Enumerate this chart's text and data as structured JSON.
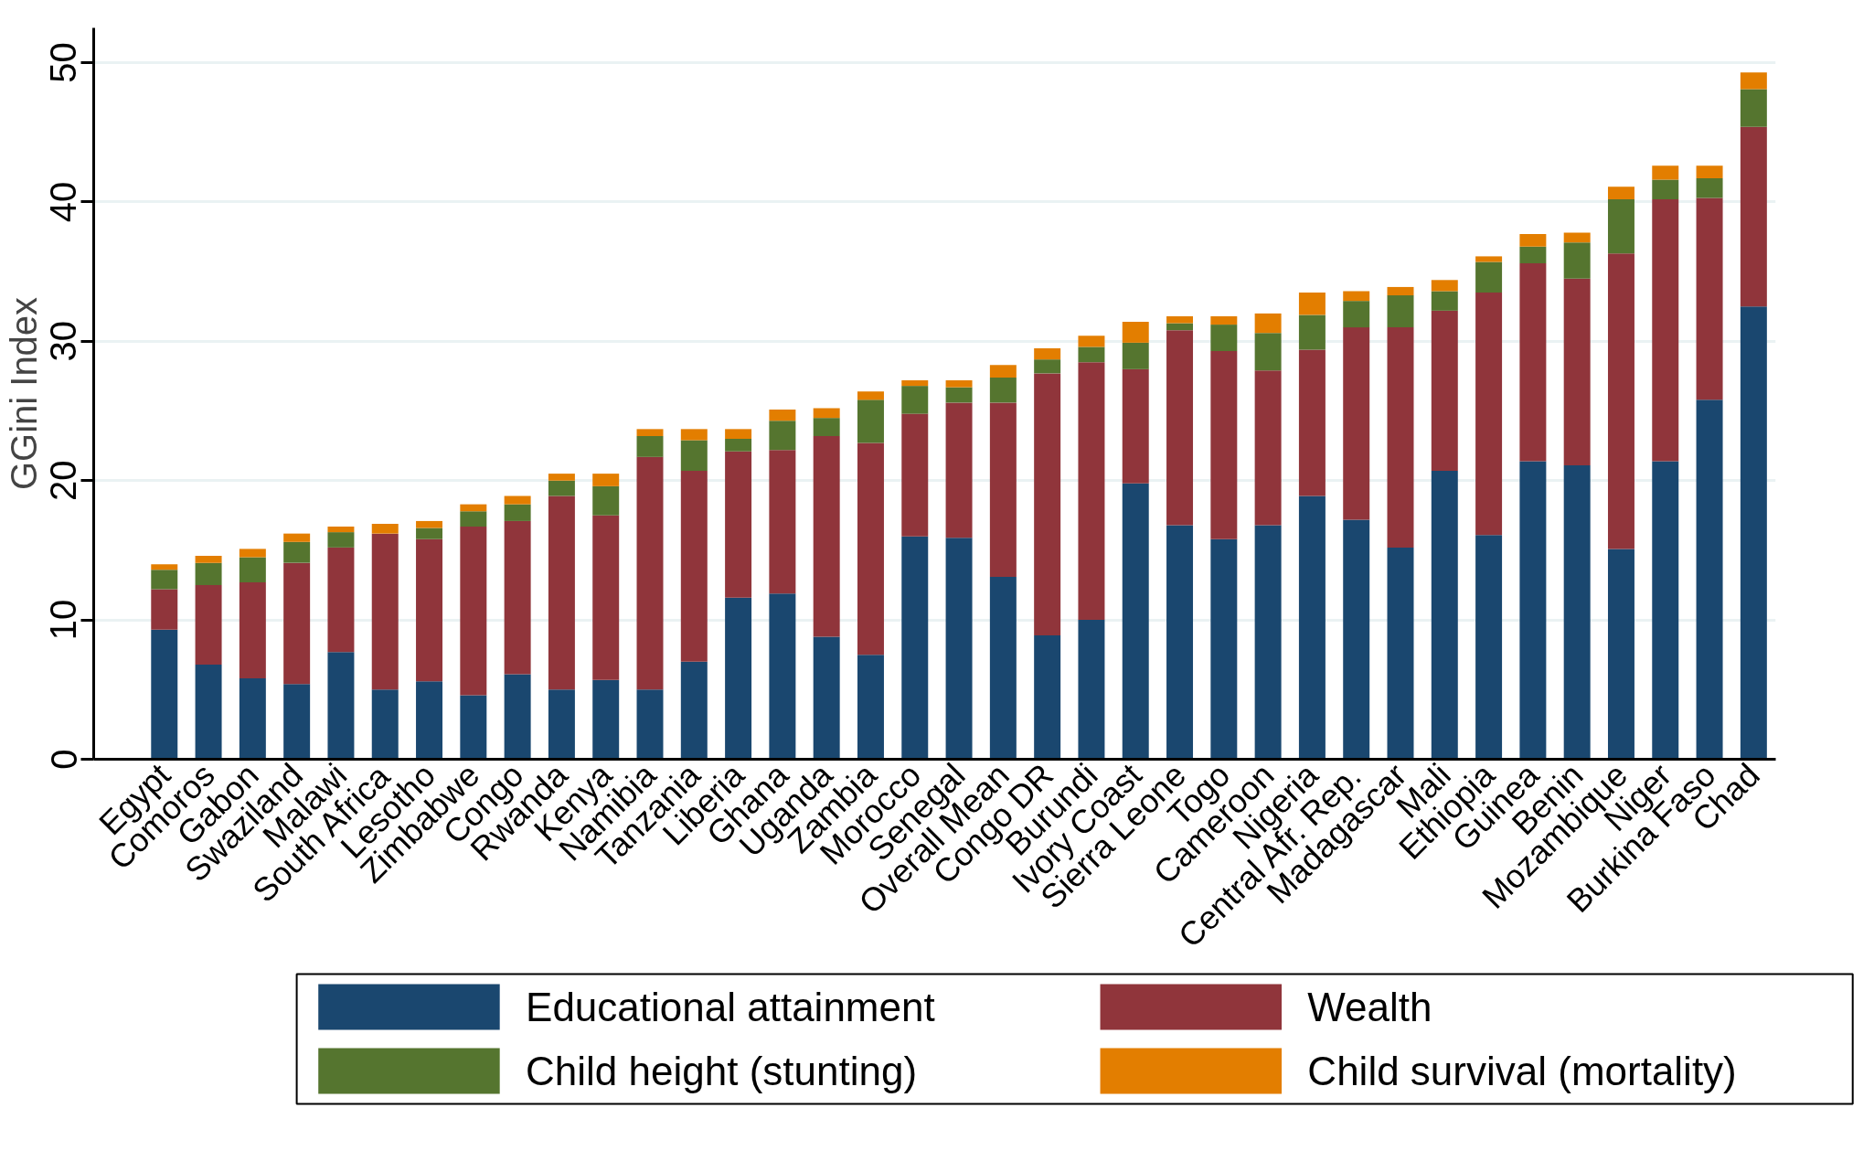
{
  "chart_data": {
    "type": "bar",
    "stacked": true,
    "ylabel": "GGini Index",
    "ylim": [
      0,
      52.5
    ],
    "yticks": [
      0,
      10,
      20,
      30,
      40,
      50
    ],
    "grid": "y",
    "legend": "bottom",
    "categories": [
      "Egypt",
      "Comoros",
      "Gabon",
      "Swaziland",
      "Malawi",
      "South Africa",
      "Lesotho",
      "Zimbabwe",
      "Congo",
      "Rwanda",
      "Kenya",
      "Namibia",
      "Tanzania",
      "Liberia",
      "Ghana",
      "Uganda",
      "Zambia",
      "Morocco",
      "Senegal",
      "Overall Mean",
      "Congo DR",
      "Burundi",
      "Ivory Coast",
      "Sierra Leone",
      "Togo",
      "Cameroon",
      "Nigeria",
      "Central Afr. Rep.",
      "Madagascar",
      "Mali",
      "Ethiopia",
      "Guinea",
      "Benin",
      "Mozambique",
      "Niger",
      "Burkina Faso",
      "Chad"
    ],
    "series": [
      {
        "name": "Educational attainment",
        "color": "#1a476f",
        "values": [
          9.3,
          6.8,
          5.8,
          5.4,
          7.7,
          5.0,
          5.6,
          4.6,
          6.1,
          5.0,
          5.7,
          5.0,
          7.0,
          11.6,
          11.9,
          8.8,
          7.5,
          16.0,
          15.9,
          13.1,
          8.9,
          10.0,
          19.8,
          16.8,
          15.8,
          16.8,
          18.9,
          17.2,
          15.2,
          20.7,
          16.1,
          21.4,
          21.1,
          15.1,
          21.4,
          25.8,
          32.5
        ]
      },
      {
        "name": "Wealth",
        "color": "#90353b",
        "values": [
          2.9,
          5.7,
          6.9,
          8.7,
          7.5,
          11.2,
          10.2,
          12.1,
          11.0,
          13.9,
          11.8,
          16.7,
          13.7,
          10.5,
          10.3,
          14.4,
          15.2,
          8.8,
          9.7,
          12.5,
          18.8,
          18.5,
          8.2,
          14.0,
          13.5,
          11.1,
          10.5,
          13.8,
          15.8,
          11.5,
          17.4,
          14.2,
          13.4,
          21.2,
          18.8,
          14.5,
          12.9
        ]
      },
      {
        "name": "Child height (stunting)",
        "color": "#55752f",
        "values": [
          1.4,
          1.6,
          1.8,
          1.5,
          1.1,
          0,
          0.8,
          1.1,
          1.2,
          1.1,
          2.1,
          1.5,
          2.2,
          0.9,
          2.1,
          1.3,
          3.1,
          2.0,
          1.1,
          1.8,
          1.0,
          1.1,
          1.9,
          0.5,
          1.9,
          2.7,
          2.5,
          1.9,
          2.3,
          1.4,
          2.2,
          1.2,
          2.6,
          3.9,
          1.4,
          1.4,
          2.7
        ]
      },
      {
        "name": "Child survival (mortality)",
        "color": "#e37e00",
        "values": [
          0.4,
          0.5,
          0.6,
          0.6,
          0.4,
          0.7,
          0.5,
          0.5,
          0.6,
          0.5,
          0.9,
          0.5,
          0.8,
          0.7,
          0.8,
          0.7,
          0.6,
          0.4,
          0.5,
          0.9,
          0.8,
          0.8,
          1.5,
          0.5,
          0.6,
          1.4,
          1.6,
          0.7,
          0.6,
          0.8,
          0.4,
          0.9,
          0.7,
          0.9,
          1.0,
          0.9,
          1.2
        ]
      }
    ]
  }
}
